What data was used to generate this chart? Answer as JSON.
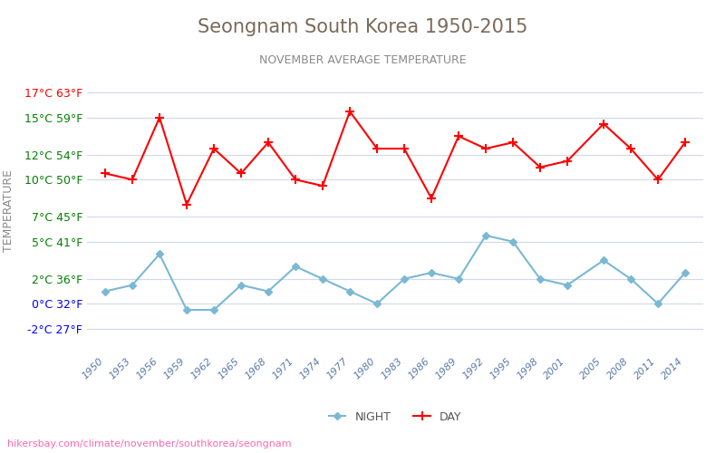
{
  "title": "Seongnam South Korea 1950-2015",
  "subtitle": "NOVEMBER AVERAGE TEMPERATURE",
  "ylabel": "TEMPERATURE",
  "xlabel_url": "hikersbay.com/climate/november/southkorea/seongnam",
  "legend_night": "NIGHT",
  "legend_day": "DAY",
  "years": [
    1950,
    1953,
    1956,
    1959,
    1962,
    1965,
    1968,
    1971,
    1974,
    1977,
    1980,
    1983,
    1986,
    1989,
    1992,
    1995,
    1998,
    2001,
    2005,
    2008,
    2011,
    2014
  ],
  "day_temps": [
    10.5,
    10.0,
    15.0,
    8.0,
    12.5,
    10.5,
    13.0,
    10.0,
    9.5,
    15.5,
    12.5,
    12.5,
    8.5,
    13.5,
    12.5,
    13.0,
    11.0,
    11.5,
    14.5,
    12.5,
    10.0,
    13.0
  ],
  "night_temps": [
    1.0,
    1.5,
    4.0,
    -0.5,
    -0.5,
    1.5,
    1.0,
    3.0,
    2.0,
    1.0,
    0.0,
    2.0,
    2.5,
    2.0,
    5.5,
    5.0,
    2.0,
    1.5,
    3.5,
    2.0,
    0.0,
    2.5
  ],
  "yticks_c": [
    -2,
    0,
    2,
    5,
    7,
    10,
    12,
    15,
    17
  ],
  "yticks_f": [
    27,
    32,
    36,
    41,
    45,
    50,
    54,
    59,
    63
  ],
  "ytick_colors": [
    "blue",
    "blue",
    "green",
    "green",
    "green",
    "green",
    "green",
    "green",
    "red"
  ],
  "ylim": [
    -4,
    19
  ],
  "bg_color": "#ffffff",
  "grid_color": "#d0d8e8",
  "day_color": "#ff0000",
  "night_color": "#7ab8d4",
  "title_color": "#7a6a5a",
  "subtitle_color": "#8a8a8a",
  "ylabel_color": "#8a8a8a",
  "url_color": "#ff69b4",
  "marker_size": 4
}
